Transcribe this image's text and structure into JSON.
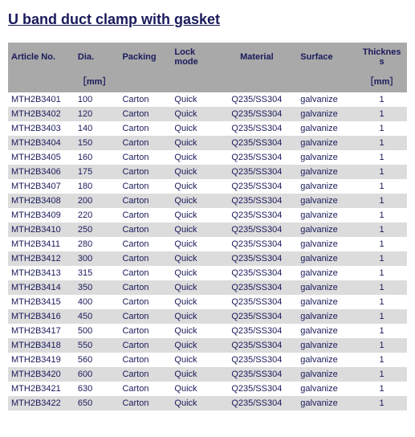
{
  "title": "U band duct clamp with gasket",
  "table": {
    "headers": {
      "article": "Article No.",
      "dia": "Dia.",
      "packing": "Packing",
      "lock": "Lock mode",
      "material": "Material",
      "surface": "Surface",
      "thickness": "Thicknes s"
    },
    "subheaders": {
      "dia_unit": "［mm］",
      "thickness_unit": "［mm］"
    },
    "rows": [
      {
        "article": "MTH2B3401",
        "dia": "100",
        "packing": "Carton",
        "lock": "Quick",
        "material": "Q235/SS304",
        "surface": "galvanize",
        "thickness": "1"
      },
      {
        "article": "MTH2B3402",
        "dia": "120",
        "packing": "Carton",
        "lock": "Quick",
        "material": "Q235/SS304",
        "surface": "galvanize",
        "thickness": "1"
      },
      {
        "article": "MTH2B3403",
        "dia": "140",
        "packing": "Carton",
        "lock": "Quick",
        "material": "Q235/SS304",
        "surface": "galvanize",
        "thickness": "1"
      },
      {
        "article": "MTH2B3404",
        "dia": "150",
        "packing": "Carton",
        "lock": "Quick",
        "material": "Q235/SS304",
        "surface": "galvanize",
        "thickness": "1"
      },
      {
        "article": "MTH2B3405",
        "dia": "160",
        "packing": "Carton",
        "lock": "Quick",
        "material": "Q235/SS304",
        "surface": "galvanize",
        "thickness": "1"
      },
      {
        "article": "MTH2B3406",
        "dia": "175",
        "packing": "Carton",
        "lock": "Quick",
        "material": "Q235/SS304",
        "surface": "galvanize",
        "thickness": "1"
      },
      {
        "article": "MTH2B3407",
        "dia": "180",
        "packing": "Carton",
        "lock": "Quick",
        "material": "Q235/SS304",
        "surface": "galvanize",
        "thickness": "1"
      },
      {
        "article": "MTH2B3408",
        "dia": "200",
        "packing": "Carton",
        "lock": "Quick",
        "material": "Q235/SS304",
        "surface": "galvanize",
        "thickness": "1"
      },
      {
        "article": "MTH2B3409",
        "dia": "220",
        "packing": "Carton",
        "lock": "Quick",
        "material": "Q235/SS304",
        "surface": "galvanize",
        "thickness": "1"
      },
      {
        "article": "MTH2B3410",
        "dia": "250",
        "packing": "Carton",
        "lock": "Quick",
        "material": "Q235/SS304",
        "surface": "galvanize",
        "thickness": "1"
      },
      {
        "article": "MTH2B3411",
        "dia": "280",
        "packing": "Carton",
        "lock": "Quick",
        "material": "Q235/SS304",
        "surface": "galvanize",
        "thickness": "1"
      },
      {
        "article": "MTH2B3412",
        "dia": "300",
        "packing": "Carton",
        "lock": "Quick",
        "material": "Q235/SS304",
        "surface": "galvanize",
        "thickness": "1"
      },
      {
        "article": "MTH2B3413",
        "dia": "315",
        "packing": "Carton",
        "lock": "Quick",
        "material": "Q235/SS304",
        "surface": "galvanize",
        "thickness": "1"
      },
      {
        "article": "MTH2B3414",
        "dia": "350",
        "packing": "Carton",
        "lock": "Quick",
        "material": "Q235/SS304",
        "surface": "galvanize",
        "thickness": "1"
      },
      {
        "article": "MTH2B3415",
        "dia": "400",
        "packing": "Carton",
        "lock": "Quick",
        "material": "Q235/SS304",
        "surface": "galvanize",
        "thickness": "1"
      },
      {
        "article": "MTH2B3416",
        "dia": "450",
        "packing": "Carton",
        "lock": "Quick",
        "material": "Q235/SS304",
        "surface": "galvanize",
        "thickness": "1"
      },
      {
        "article": "MTH2B3417",
        "dia": "500",
        "packing": "Carton",
        "lock": "Quick",
        "material": "Q235/SS304",
        "surface": "galvanize",
        "thickness": "1"
      },
      {
        "article": "MTH2B3418",
        "dia": "550",
        "packing": "Carton",
        "lock": "Quick",
        "material": "Q235/SS304",
        "surface": "galvanize",
        "thickness": "1"
      },
      {
        "article": "MTH2B3419",
        "dia": "560",
        "packing": "Carton",
        "lock": "Quick",
        "material": "Q235/SS304",
        "surface": "galvanize",
        "thickness": "1"
      },
      {
        "article": "MTH2B3420",
        "dia": "600",
        "packing": "Carton",
        "lock": "Quick",
        "material": "Q235/SS304",
        "surface": "galvanize",
        "thickness": "1"
      },
      {
        "article": "MTH2B3421",
        "dia": "630",
        "packing": "Carton",
        "lock": "Quick",
        "material": "Q235/SS304",
        "surface": "galvanize",
        "thickness": "1"
      },
      {
        "article": "MTH2B3422",
        "dia": "650",
        "packing": "Carton",
        "lock": "Quick",
        "material": "Q235/SS304",
        "surface": "galvanize",
        "thickness": "1"
      }
    ]
  },
  "colors": {
    "header_bg": "#a9a9a9",
    "row_even_bg": "#dcdcdc",
    "row_odd_bg": "#ffffff",
    "text": "#1a1a5c"
  }
}
